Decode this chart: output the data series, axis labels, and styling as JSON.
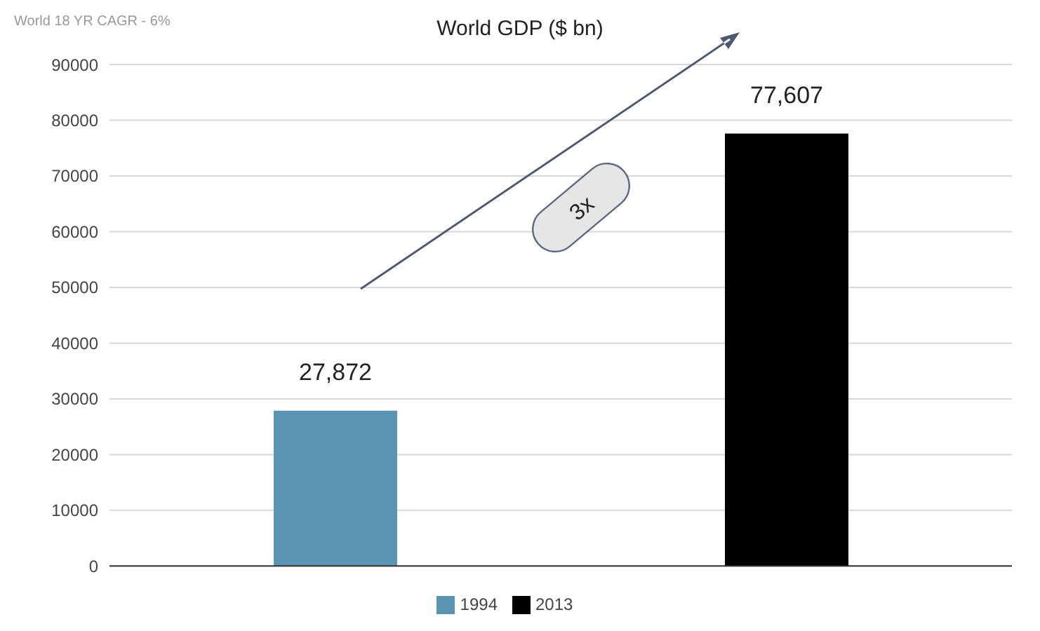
{
  "chart_data": {
    "type": "bar",
    "title": "World GDP ($ bn)",
    "subtitle": "World 18 YR CAGR - 6%",
    "annotations": [
      "3x"
    ],
    "categories": [
      null,
      null
    ],
    "series": [
      {
        "name": "1994",
        "color": "#5b93b2",
        "values": [
          27872,
          null
        ],
        "value_labels": [
          "27,872",
          null
        ]
      },
      {
        "name": "2013",
        "color": "#000000",
        "values": [
          null,
          77607
        ],
        "value_labels": [
          null,
          "77,607"
        ]
      }
    ],
    "ylim": [
      0,
      90000
    ],
    "yticks": [
      0,
      10000,
      20000,
      30000,
      40000,
      50000,
      60000,
      70000,
      80000,
      90000
    ],
    "grid": "y",
    "legend": "bottom"
  }
}
